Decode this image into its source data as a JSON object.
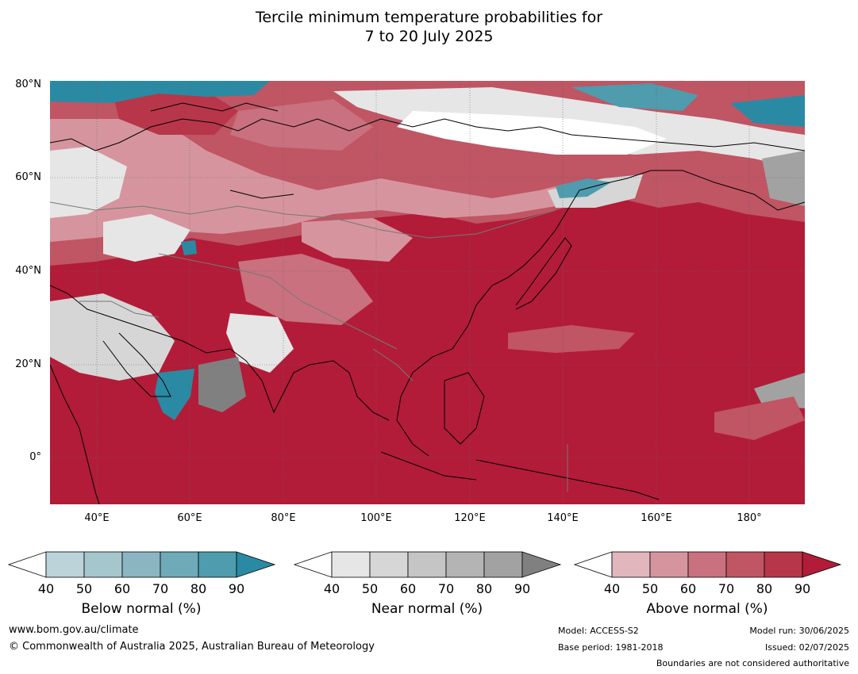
{
  "title": {
    "line1": "Tercile minimum temperature probabilities for",
    "line2": "7 to 20 July 2025"
  },
  "axes": {
    "lat_labels": [
      "80°N",
      "60°N",
      "40°N",
      "20°N",
      "0°"
    ],
    "lon_labels": [
      "40°E",
      "60°E",
      "80°E",
      "100°E",
      "120°E",
      "140°E",
      "160°E",
      "180°"
    ],
    "lat_range": [
      -10,
      80
    ],
    "lon_range": [
      30,
      192
    ],
    "grid": true
  },
  "colorbars": [
    {
      "name": "below",
      "title": "Below normal (%)",
      "ticks": [
        "40",
        "50",
        "60",
        "70",
        "80",
        "90"
      ],
      "colors": [
        "#ffffff",
        "#bdd3da",
        "#a5c6cd",
        "#8ab5c1",
        "#6eaab7",
        "#4e9cae",
        "#2a8aa3"
      ]
    },
    {
      "name": "near",
      "title": "Near normal (%)",
      "ticks": [
        "40",
        "50",
        "60",
        "70",
        "80",
        "90"
      ],
      "colors": [
        "#ffffff",
        "#e6e6e6",
        "#d6d6d6",
        "#c5c5c5",
        "#b4b4b4",
        "#a2a2a2",
        "#808080"
      ]
    },
    {
      "name": "above",
      "title": "Above normal (%)",
      "ticks": [
        "40",
        "50",
        "60",
        "70",
        "80",
        "90"
      ],
      "colors": [
        "#ffffff",
        "#e1b6bd",
        "#d6959e",
        "#c9717e",
        "#c05564",
        "#b83649",
        "#b21c38"
      ]
    }
  ],
  "footer": {
    "website": "www.bom.gov.au/climate",
    "copyright": "© Commonwealth of Australia 2025, Australian Bureau of Meteorology",
    "model": "Model: ACCESS-S2",
    "base_period": "Base period: 1981-2018",
    "model_run": "Model run: 30/06/2025",
    "issued": "Issued: 02/07/2025",
    "disclaimer": "Boundaries are not considered authoritative"
  }
}
